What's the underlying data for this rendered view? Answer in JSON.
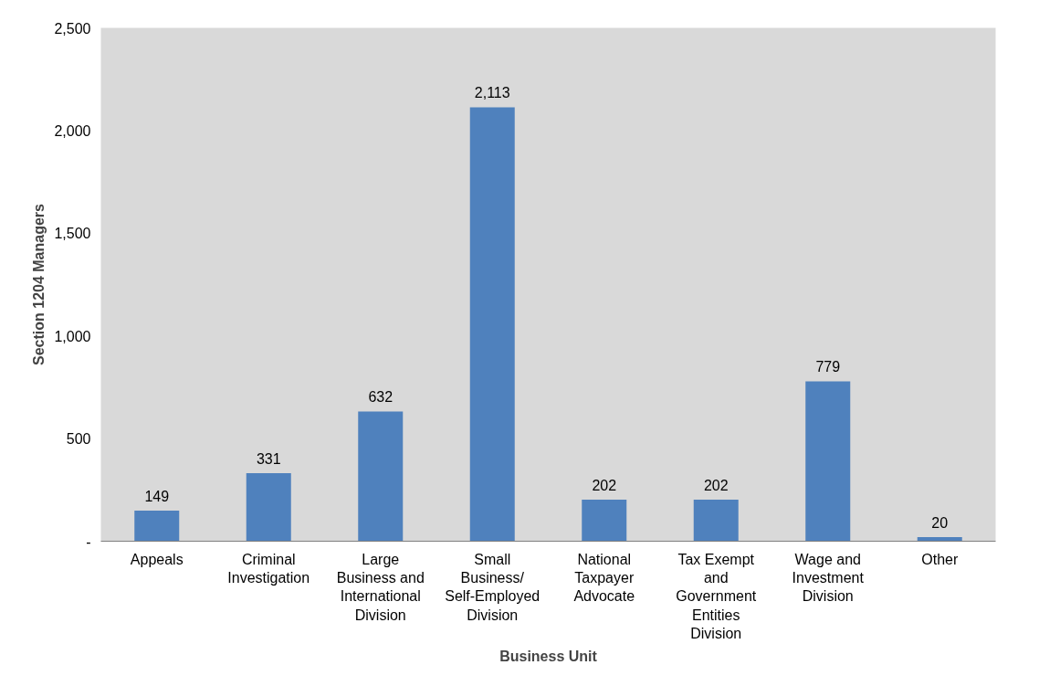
{
  "chart_data": {
    "type": "bar",
    "xlabel": "Business Unit",
    "ylabel": "Section 1204 Managers",
    "categories": [
      "Appeals",
      "Criminal Investigation",
      "Large Business and International Division",
      "Small Business/ Self-Employed Division",
      "National Taxpayer Advocate",
      "Tax Exempt and Government Entities Division",
      "Wage and Investment Division",
      "Other"
    ],
    "values": [
      149,
      331,
      632,
      2113,
      202,
      202,
      779,
      20
    ],
    "color": "#4f81bd",
    "ylim": [
      0,
      2500
    ],
    "yticks": [
      {
        "value": 0,
        "label": "-"
      },
      500,
      {
        "value": 1000,
        "label": "1,000"
      },
      {
        "value": 1500,
        "label": "1,500"
      },
      {
        "value": 2000,
        "label": "2,000"
      },
      {
        "value": 2500,
        "label": "2,500"
      }
    ],
    "value_labels": [
      "149",
      "331",
      "632",
      "2,113",
      "202",
      "202",
      "779",
      "20"
    ],
    "grid": false
  }
}
